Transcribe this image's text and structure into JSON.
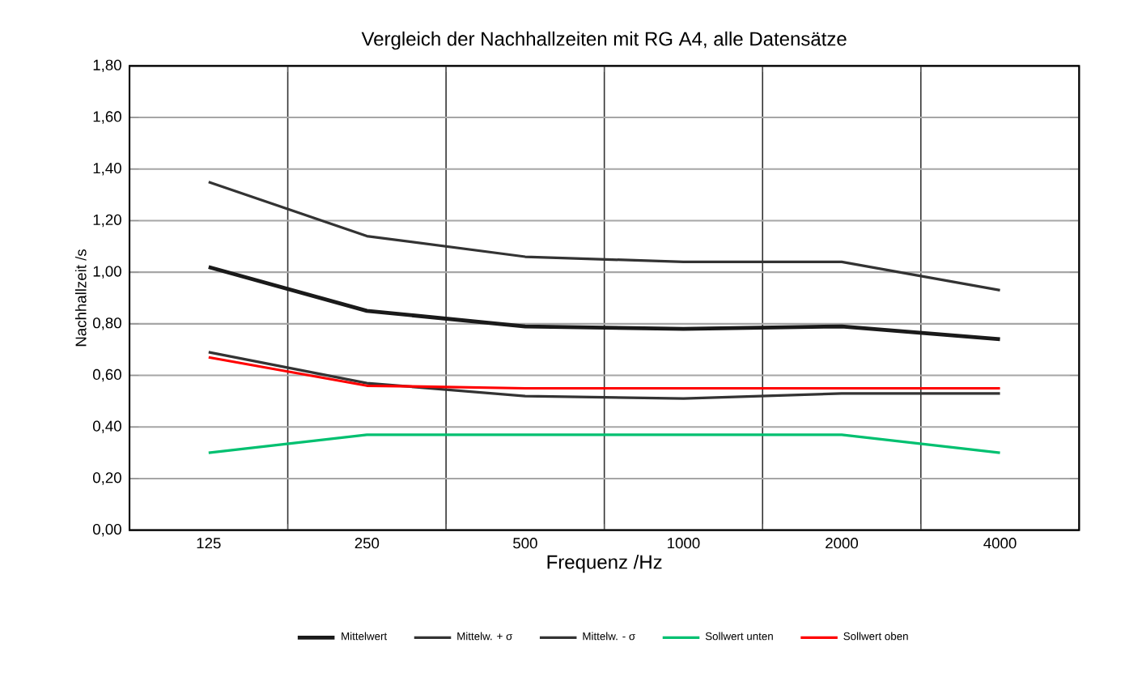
{
  "chart_data": {
    "type": "line",
    "title": "Vergleich der Nachhallzeiten mit RG A4, alle Datensätze",
    "xlabel": "Frequenz /Hz",
    "ylabel": "Nachhallzeit /s",
    "categories": [
      "125",
      "250",
      "500",
      "1000",
      "2000",
      "4000"
    ],
    "ylim": [
      0,
      1.8
    ],
    "yticks": [
      {
        "value": 0,
        "label": "0,00"
      },
      {
        "value": 0.2,
        "label": "0,20"
      },
      {
        "value": 0.4,
        "label": "0,40"
      },
      {
        "value": 0.6,
        "label": "0,60"
      },
      {
        "value": 0.8,
        "label": "0,80"
      },
      {
        "value": 1.0,
        "label": "1,00"
      },
      {
        "value": 1.2,
        "label": "1,20"
      },
      {
        "value": 1.4,
        "label": "1,40"
      },
      {
        "value": 1.6,
        "label": "1,60"
      },
      {
        "value": 1.8,
        "label": "1,80"
      }
    ],
    "grid": true,
    "legend": "bottom",
    "marker": "none",
    "line_style": "solid",
    "series": [
      {
        "name": "Mittelwert",
        "color": "#1a1a1a",
        "values": [
          1.02,
          0.85,
          0.79,
          0.78,
          0.79,
          0.74
        ]
      },
      {
        "name": "Mittelw. + σ",
        "color": "#333333",
        "values": [
          1.35,
          1.14,
          1.06,
          1.04,
          1.04,
          0.93
        ]
      },
      {
        "name": "Mittelw. - σ",
        "color": "#333333",
        "values": [
          0.69,
          0.57,
          0.52,
          0.51,
          0.53,
          0.53
        ]
      },
      {
        "name": "Sollwert unten",
        "color": "#00c070",
        "values": [
          0.3,
          0.37,
          0.37,
          0.37,
          0.37,
          0.3
        ]
      },
      {
        "name": "Sollwert oben",
        "color": "#ff0000",
        "values": [
          0.67,
          0.56,
          0.55,
          0.55,
          0.55,
          0.55
        ]
      }
    ]
  }
}
